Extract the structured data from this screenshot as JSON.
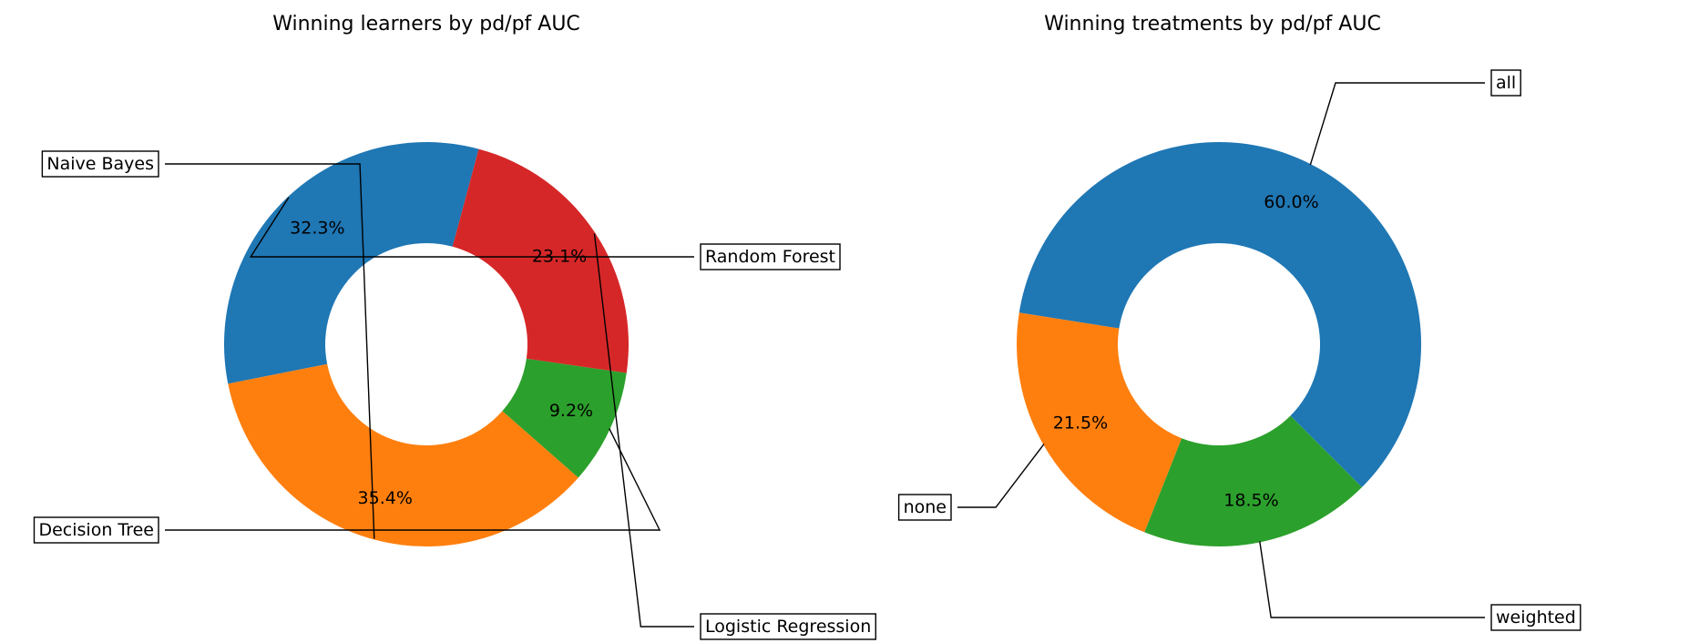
{
  "chart_data": [
    {
      "type": "pie",
      "donut": true,
      "title": "Winning learners by pd/pf AUC",
      "categories": [
        "Random Forest",
        "Naive Bayes",
        "Decision Tree",
        "Logistic Regression"
      ],
      "values": [
        32.3,
        35.4,
        9.2,
        23.1
      ],
      "value_labels": [
        "32.3%",
        "35.4%",
        "9.2%",
        "23.1%"
      ],
      "colors": [
        "#1f77b4",
        "#ff7f0e",
        "#2ca02c",
        "#d62728"
      ],
      "start_angle": 75,
      "direction": "counterclockwise",
      "legend": "none"
    },
    {
      "type": "pie",
      "donut": true,
      "title": "Winning treatments by pd/pf AUC",
      "categories": [
        "all",
        "none",
        "weighted"
      ],
      "values": [
        60.0,
        21.5,
        18.5
      ],
      "value_labels": [
        "60.0%",
        "21.5%",
        "18.5%"
      ],
      "colors": [
        "#1f77b4",
        "#ff7f0e",
        "#2ca02c"
      ],
      "start_angle": -45,
      "direction": "counterclockwise",
      "legend": "none"
    }
  ]
}
